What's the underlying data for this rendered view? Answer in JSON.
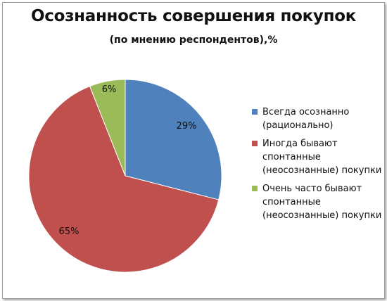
{
  "chart_data": {
    "type": "pie",
    "title": "Осознанность совершения покупок",
    "subtitle": "(по мнению респондентов),%",
    "legend_position": "right",
    "slices": [
      {
        "name": "Всегда осознанно (рационально)",
        "value": 29,
        "label": "29%",
        "color": "#4f81bd"
      },
      {
        "name": "Иногда бывают спонтанные (неосознанные) покупки",
        "value": 65,
        "label": "65%",
        "color": "#c0504d"
      },
      {
        "name": "Очень часто бывают спонтанные (неосознанные) покупки",
        "value": 6,
        "label": "6%",
        "color": "#9bbb59"
      }
    ]
  }
}
